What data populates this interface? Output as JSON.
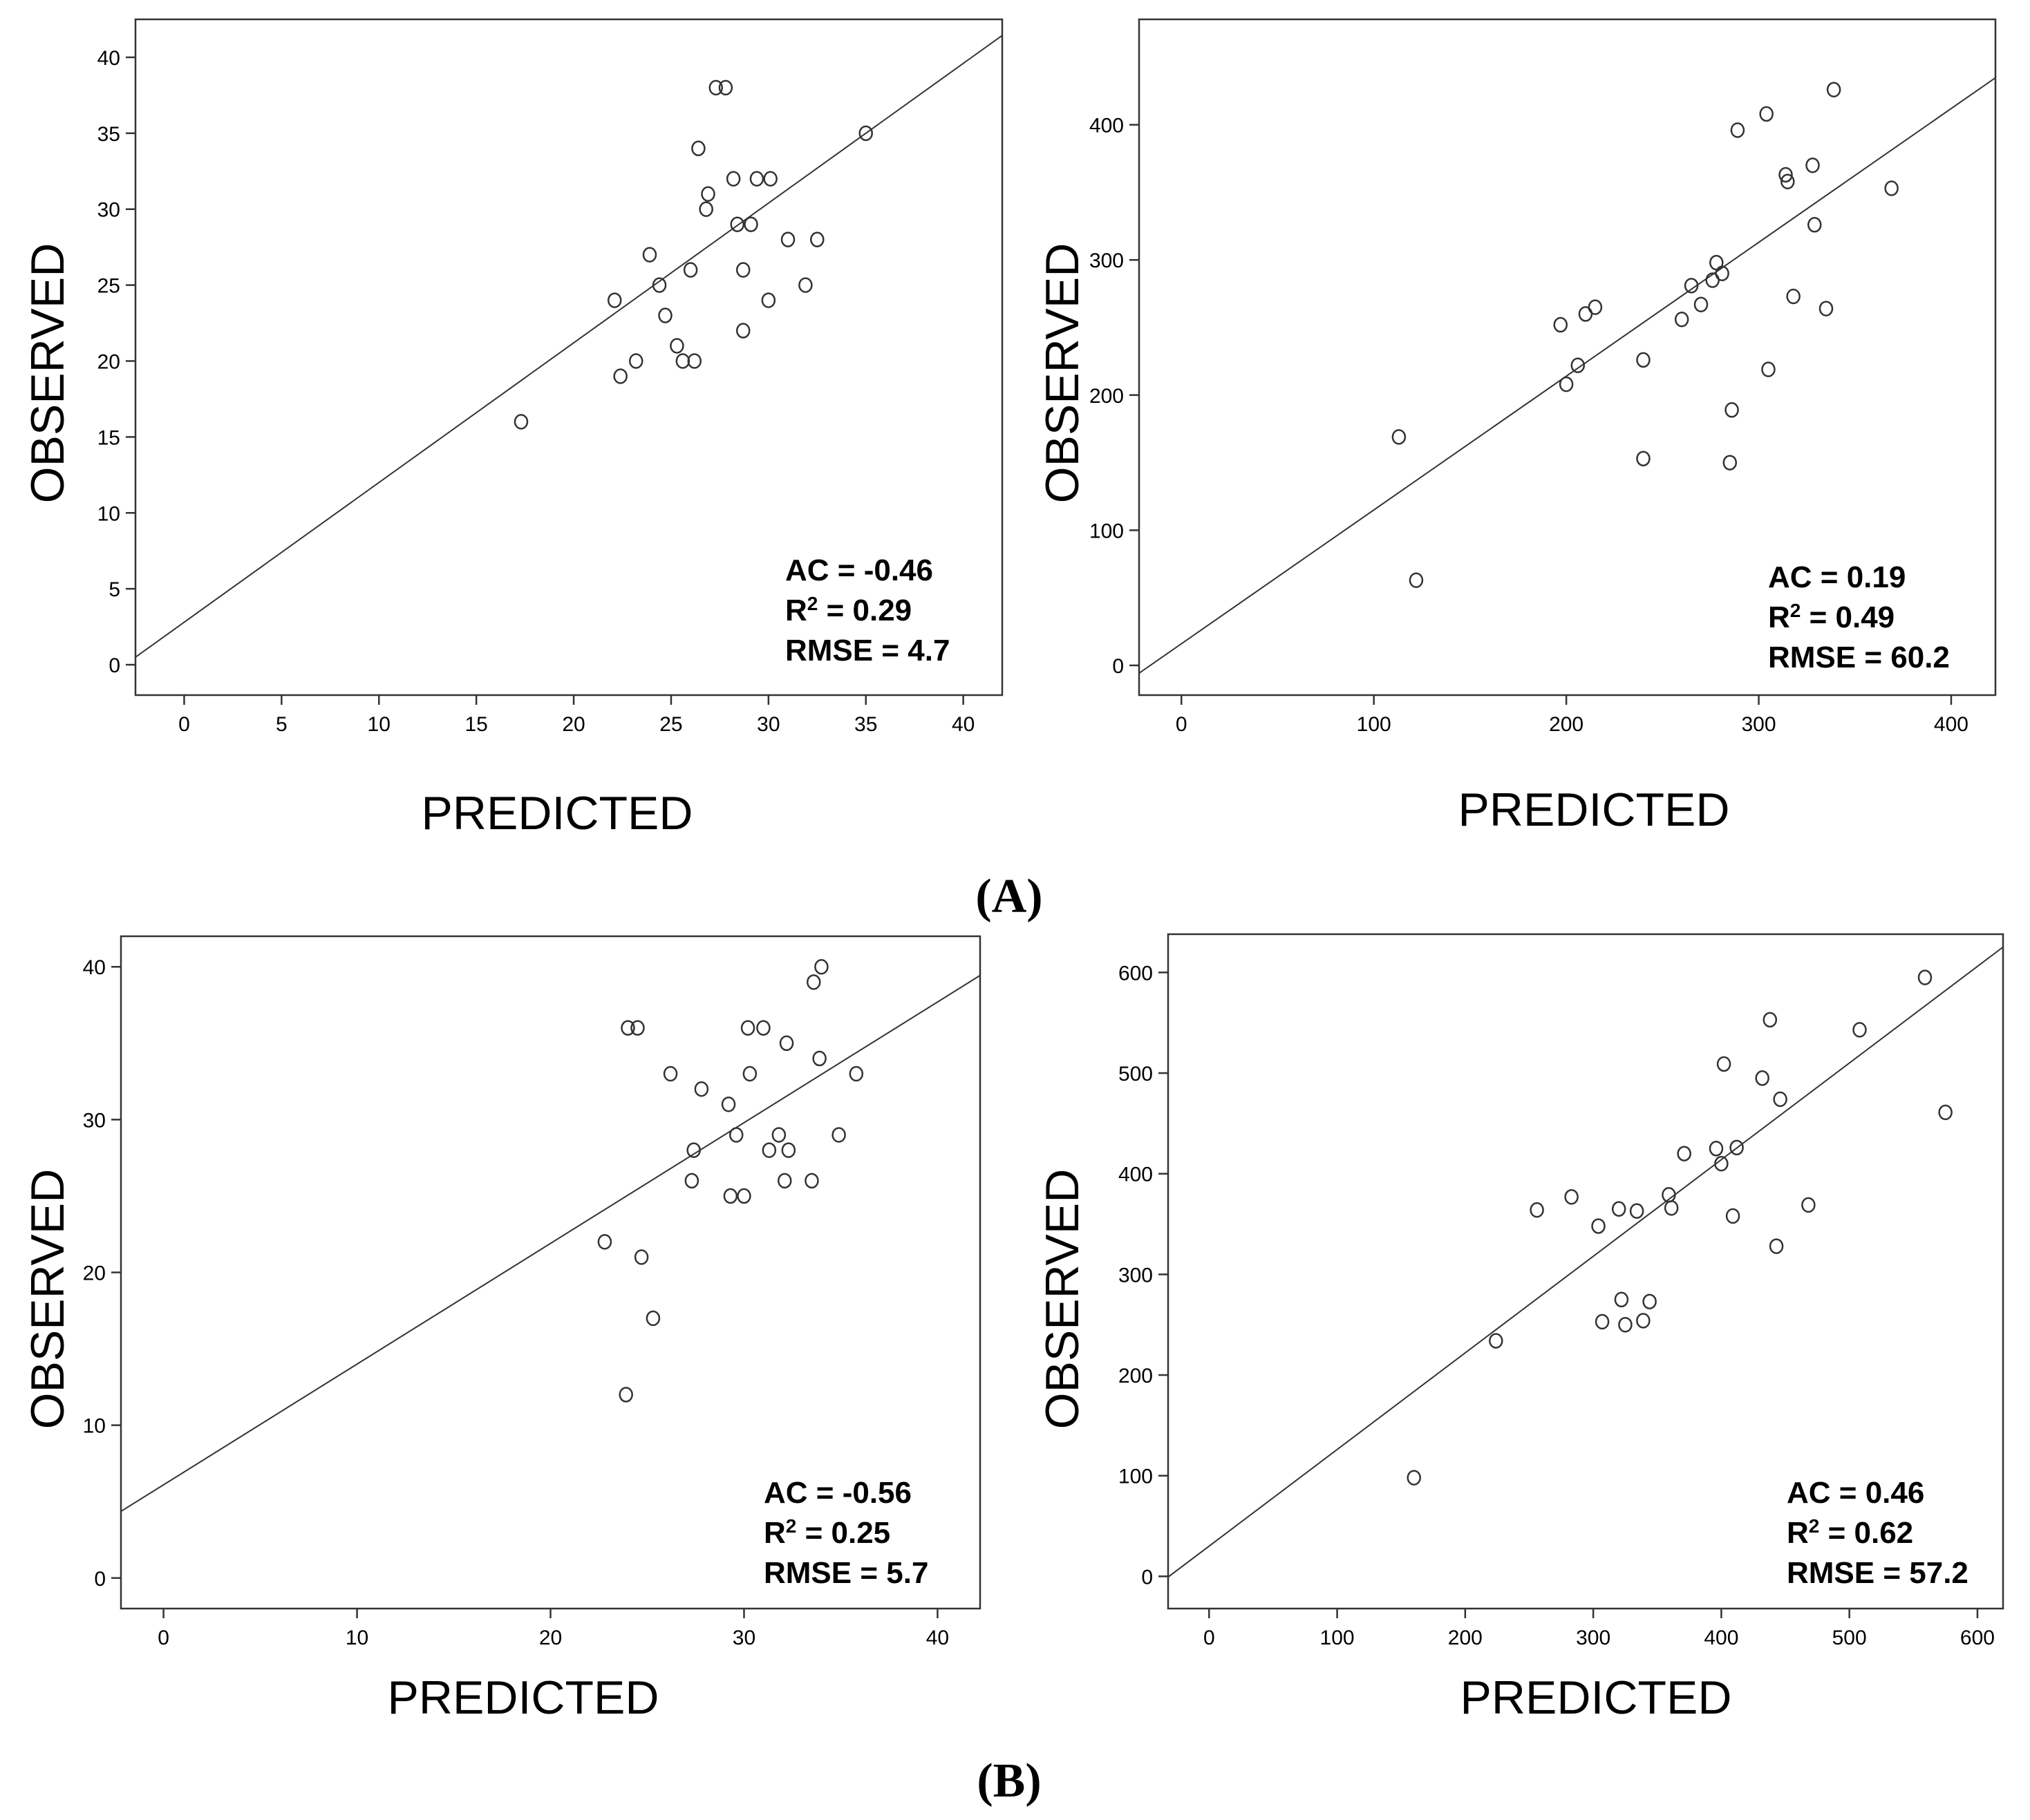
{
  "panel_labels": [
    "(A)",
    "(B)"
  ],
  "chart_data": [
    {
      "type": "scatter",
      "panel": "A-left",
      "xlabel": "PREDICTED",
      "ylabel": "OBSERVED",
      "xlim": [
        -2.5,
        42
      ],
      "ylim": [
        -2,
        42.5
      ],
      "xticks": [
        0,
        5,
        10,
        15,
        20,
        25,
        30,
        35,
        40
      ],
      "yticks": [
        0,
        5,
        10,
        15,
        20,
        25,
        30,
        35,
        40
      ],
      "stats": {
        "ac": "AC = -0.46",
        "r2": "= 0.29",
        "rmse": "RMSE = 4.7"
      },
      "fit_line": {
        "intercept": 2.8,
        "slope": 0.92
      },
      "points": [
        [
          17.3,
          16
        ],
        [
          22.1,
          24
        ],
        [
          22.4,
          19
        ],
        [
          23.2,
          20
        ],
        [
          23.9,
          27
        ],
        [
          24.4,
          25
        ],
        [
          24.7,
          23
        ],
        [
          25.3,
          21
        ],
        [
          25.6,
          20
        ],
        [
          26.0,
          26
        ],
        [
          26.2,
          20
        ],
        [
          26.4,
          34
        ],
        [
          26.8,
          30
        ],
        [
          26.9,
          31
        ],
        [
          27.3,
          38
        ],
        [
          27.8,
          38
        ],
        [
          28.2,
          32
        ],
        [
          28.4,
          29
        ],
        [
          28.7,
          26
        ],
        [
          28.7,
          22
        ],
        [
          29.1,
          29
        ],
        [
          29.4,
          32
        ],
        [
          30.0,
          24
        ],
        [
          30.1,
          32
        ],
        [
          31.0,
          28
        ],
        [
          31.9,
          25
        ],
        [
          32.5,
          28
        ],
        [
          35.0,
          35
        ]
      ]
    },
    {
      "type": "scatter",
      "panel": "A-right",
      "xlabel": "PREDICTED",
      "ylabel": "OBSERVED",
      "xlim": [
        -22,
        423
      ],
      "ylim": [
        -22,
        478
      ],
      "xticks": [
        0,
        100,
        200,
        300,
        400
      ],
      "yticks": [
        0,
        100,
        200,
        300,
        400
      ],
      "stats": {
        "ac": "AC = 0.19",
        "r2": "= 0.49",
        "rmse": "RMSE = 60.2"
      },
      "fit_line": {
        "intercept": 16,
        "slope": 0.99
      },
      "points": [
        [
          113,
          169
        ],
        [
          122,
          63
        ],
        [
          197,
          252
        ],
        [
          200,
          208
        ],
        [
          206,
          222
        ],
        [
          210,
          260
        ],
        [
          215,
          265
        ],
        [
          240,
          226
        ],
        [
          240,
          153
        ],
        [
          260,
          256
        ],
        [
          265,
          281
        ],
        [
          270,
          267
        ],
        [
          276,
          285
        ],
        [
          278,
          298
        ],
        [
          281,
          290
        ],
        [
          285,
          150
        ],
        [
          286,
          189
        ],
        [
          289,
          396
        ],
        [
          304,
          408
        ],
        [
          305,
          219
        ],
        [
          314,
          363
        ],
        [
          315,
          358
        ],
        [
          318,
          273
        ],
        [
          328,
          370
        ],
        [
          329,
          326
        ],
        [
          335,
          264
        ],
        [
          339,
          426
        ],
        [
          369,
          353
        ]
      ]
    },
    {
      "type": "scatter",
      "panel": "B-left",
      "xlabel": "PREDICTED",
      "ylabel": "OBSERVED",
      "xlim": [
        -2.2,
        42.2
      ],
      "ylim": [
        -2,
        42
      ],
      "xticks": [
        0,
        10,
        20,
        30,
        40
      ],
      "yticks": [
        0,
        10,
        20,
        30,
        40
      ],
      "stats": {
        "ac": "AC = -0.56",
        "r2": "= 0.25",
        "rmse": "RMSE = 5.7"
      },
      "fit_line": {
        "intercept": 6.1,
        "slope": 0.79
      },
      "points": [
        [
          22.8,
          22
        ],
        [
          23.9,
          12
        ],
        [
          24.0,
          36
        ],
        [
          24.5,
          36
        ],
        [
          24.7,
          21
        ],
        [
          25.3,
          17
        ],
        [
          26.2,
          33
        ],
        [
          27.3,
          26
        ],
        [
          27.4,
          28
        ],
        [
          27.8,
          32
        ],
        [
          29.2,
          31
        ],
        [
          29.3,
          25
        ],
        [
          29.6,
          29
        ],
        [
          30.0,
          25
        ],
        [
          30.2,
          36
        ],
        [
          30.3,
          33
        ],
        [
          31.0,
          36
        ],
        [
          31.3,
          28
        ],
        [
          31.8,
          29
        ],
        [
          32.1,
          26
        ],
        [
          32.2,
          35
        ],
        [
          32.3,
          28
        ],
        [
          33.5,
          26
        ],
        [
          33.6,
          39
        ],
        [
          33.9,
          34
        ],
        [
          34.0,
          40
        ],
        [
          34.9,
          29
        ],
        [
          35.8,
          33
        ]
      ]
    },
    {
      "type": "scatter",
      "panel": "B-right",
      "xlabel": "PREDICTED",
      "ylabel": "OBSERVED",
      "xlim": [
        -32,
        620
      ],
      "ylim": [
        -32,
        638
      ],
      "xticks": [
        0,
        100,
        200,
        300,
        400,
        500,
        600
      ],
      "yticks": [
        0,
        100,
        200,
        300,
        400,
        500,
        600
      ],
      "stats": {
        "ac": "AC = 0.46",
        "r2": "= 0.62",
        "rmse": "RMSE = 57.2"
      },
      "fit_line": {
        "intercept": 30,
        "slope": 0.96
      },
      "points": [
        [
          160,
          98
        ],
        [
          224,
          234
        ],
        [
          256,
          364
        ],
        [
          283,
          377
        ],
        [
          304,
          348
        ],
        [
          307,
          253
        ],
        [
          320,
          365
        ],
        [
          322,
          275
        ],
        [
          325,
          250
        ],
        [
          334,
          363
        ],
        [
          339,
          254
        ],
        [
          344,
          273
        ],
        [
          359,
          379
        ],
        [
          361,
          366
        ],
        [
          371,
          420
        ],
        [
          396,
          425
        ],
        [
          400,
          410
        ],
        [
          402,
          509
        ],
        [
          409,
          358
        ],
        [
          412,
          426
        ],
        [
          432,
          495
        ],
        [
          438,
          553
        ],
        [
          443,
          328
        ],
        [
          446,
          474
        ],
        [
          468,
          369
        ],
        [
          508,
          543
        ],
        [
          559,
          595
        ],
        [
          575,
          461
        ]
      ]
    }
  ]
}
